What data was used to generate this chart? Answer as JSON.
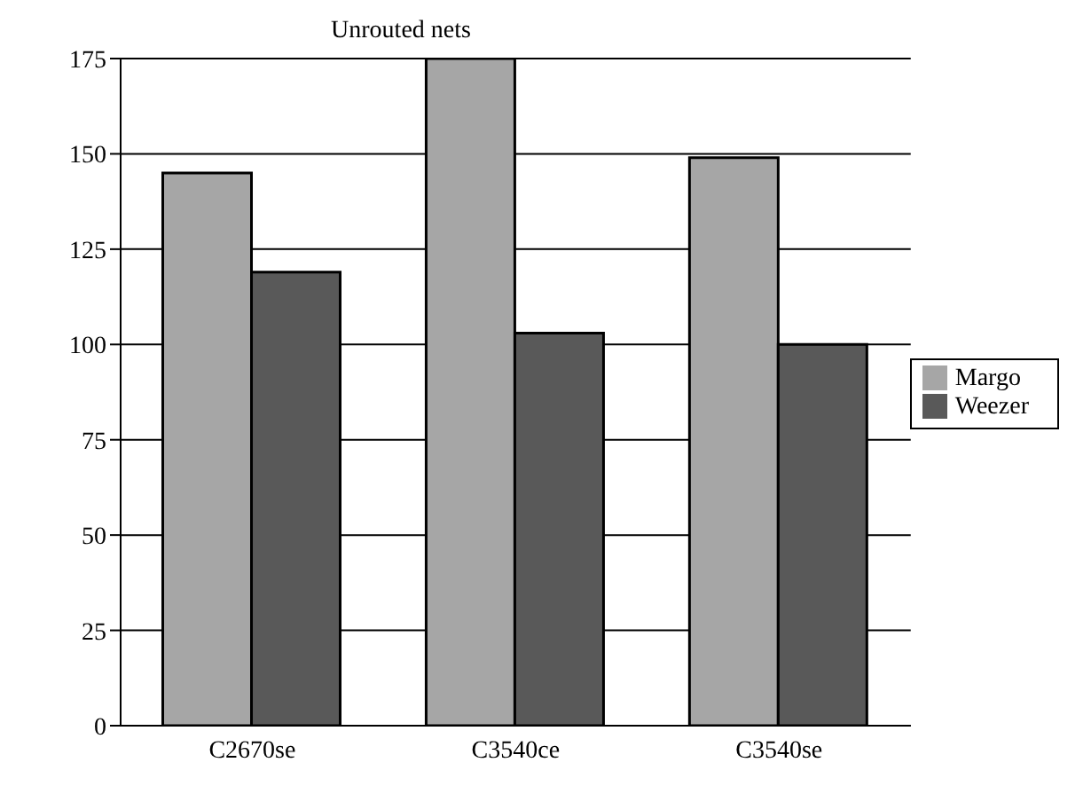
{
  "chart_data": {
    "type": "bar",
    "title": "Unrouted nets",
    "categories": [
      "C2670se",
      "C3540ce",
      "C3540se"
    ],
    "series": [
      {
        "name": "Margo",
        "color": "#a6a6a6",
        "values": [
          145,
          175,
          149
        ]
      },
      {
        "name": "Weezer",
        "color": "#595959",
        "values": [
          119,
          103,
          100
        ]
      }
    ],
    "ylim": [
      0,
      175
    ],
    "yticks": [
      0,
      25,
      50,
      75,
      100,
      125,
      150,
      175
    ],
    "grid": "y",
    "legend": "right"
  }
}
